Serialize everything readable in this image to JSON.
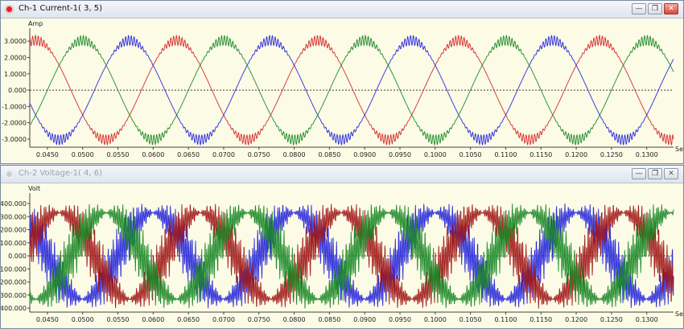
{
  "windows": [
    {
      "title": "Ch-1 Current-1( 3, 5)",
      "buttons": {
        "minimize": "—",
        "restore": "❐",
        "close": "✕"
      }
    },
    {
      "title": "Ch-2 Voltage-1( 4, 6)",
      "buttons": {
        "minimize": "—",
        "restore": "❐",
        "close": "✕"
      }
    }
  ],
  "chart_data": [
    {
      "type": "line",
      "ylabel": "Amp",
      "xlabel": "Sec",
      "xlim": [
        0.0425,
        0.1338
      ],
      "ylim": [
        -3.5,
        3.8
      ],
      "yticks": [
        "3.0000",
        "2.0000",
        "1.0000",
        "0.000",
        "-1.0000",
        "-2.0000",
        "-3.0000"
      ],
      "yticks_values": [
        3,
        2,
        1,
        0,
        -1,
        -2,
        -3
      ],
      "xticks": [
        "0.0450",
        "0.0500",
        "0.0550",
        "0.0600",
        "0.0650",
        "0.0700",
        "0.0750",
        "0.0800",
        "0.0850",
        "0.0900",
        "0.0950",
        "0.1000",
        "0.1050",
        "0.1100",
        "0.1150",
        "0.1200",
        "0.1250",
        "0.1300"
      ],
      "xticks_values": [
        0.045,
        0.05,
        0.055,
        0.06,
        0.065,
        0.07,
        0.075,
        0.08,
        0.085,
        0.09,
        0.095,
        0.1,
        0.105,
        0.11,
        0.115,
        0.12,
        0.125,
        0.13
      ],
      "zero_line": 0,
      "series": [
        {
          "color": "#d62b2b",
          "amplitude": 3.05,
          "frequency_hz": 50,
          "phase_deg": 30,
          "ripple": 0.3
        },
        {
          "color": "#2a2adb",
          "amplitude": 3.05,
          "frequency_hz": 50,
          "phase_deg": 150,
          "ripple": 0.3
        },
        {
          "color": "#1f8a2a",
          "amplitude": 3.05,
          "frequency_hz": 50,
          "phase_deg": -90,
          "ripple": 0.3
        }
      ]
    },
    {
      "type": "line",
      "ylabel": "Volt",
      "xlabel": "Sec",
      "xlim": [
        0.0425,
        0.1338
      ],
      "ylim": [
        -430,
        480
      ],
      "yticks": [
        "400.000",
        "300.000",
        "200.000",
        "100.000",
        "0.000",
        "-100.000",
        "-200.000",
        "-300.000",
        "-400.000"
      ],
      "yticks_values": [
        400,
        300,
        200,
        100,
        0,
        -100,
        -200,
        -300,
        -400
      ],
      "xticks": [
        "0.0450",
        "0.0500",
        "0.0550",
        "0.0600",
        "0.0650",
        "0.0700",
        "0.0750",
        "0.0800",
        "0.0850",
        "0.0900",
        "0.0950",
        "0.1000",
        "0.1050",
        "0.1100",
        "0.1150",
        "0.1200",
        "0.1250",
        "0.1300"
      ],
      "xticks_values": [
        0.045,
        0.05,
        0.055,
        0.06,
        0.065,
        0.07,
        0.075,
        0.08,
        0.085,
        0.09,
        0.095,
        0.1,
        0.105,
        0.11,
        0.115,
        0.12,
        0.125,
        0.13
      ],
      "zero_line": 0,
      "series": [
        {
          "color": "#2a2adb",
          "amplitude": 330,
          "frequency_hz": 50,
          "phase_deg": 90,
          "switch_amplitude": 420
        },
        {
          "color": "#a11a1a",
          "amplitude": 330,
          "frequency_hz": 50,
          "phase_deg": -30,
          "switch_amplitude": 420
        },
        {
          "color": "#1f8a2a",
          "amplitude": 330,
          "frequency_hz": 50,
          "phase_deg": 210,
          "switch_amplitude": 420
        }
      ]
    }
  ]
}
